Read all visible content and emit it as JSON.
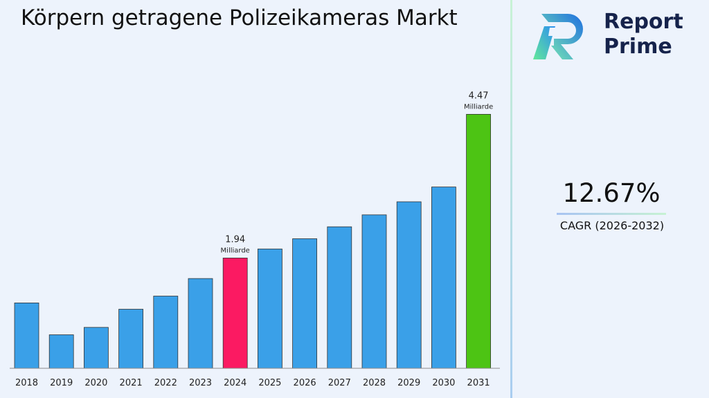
{
  "chart_data": {
    "type": "bar",
    "title": "Körpern getragene Polizeikameras Markt",
    "categories": [
      "2018",
      "2019",
      "2020",
      "2021",
      "2022",
      "2023",
      "2024",
      "2025",
      "2026",
      "2027",
      "2028",
      "2029",
      "2030",
      "2031"
    ],
    "values": [
      1.15,
      0.59,
      0.72,
      1.04,
      1.27,
      1.58,
      1.94,
      2.1,
      2.28,
      2.49,
      2.7,
      2.93,
      3.19,
      4.47
    ],
    "data_labels": [
      {
        "category": "2024",
        "value": "1.94",
        "unit": "Milliarde"
      },
      {
        "category": "2031",
        "value": "4.47",
        "unit": "Milliarde"
      }
    ],
    "ylim": [
      0,
      4.9
    ],
    "colors": {
      "default": "#3aa0e8",
      "highlight_2024": "#fb1a62",
      "highlight_2031": "#4dc414"
    },
    "grid": false,
    "legend": "none"
  },
  "logo": {
    "line1": "Report",
    "line2": "Prime"
  },
  "cagr": {
    "value": "12.67%",
    "label": "CAGR (2026-2032)"
  }
}
